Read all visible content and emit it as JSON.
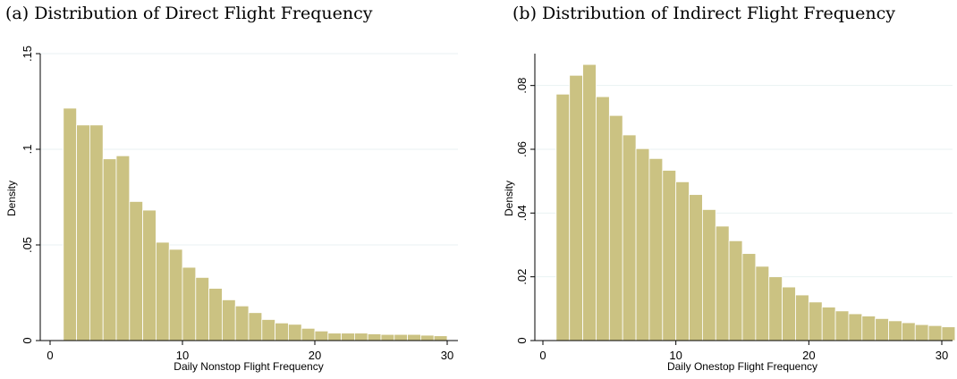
{
  "panels": [
    {
      "title": "(a) Distribution of Direct Flight Frequency"
    },
    {
      "title": "(b) Distribution of Indirect Flight Frequency"
    }
  ],
  "chart_data": [
    {
      "type": "bar",
      "xlabel": "Daily Nonstop Flight Frequency",
      "ylabel": "Density",
      "xlim": [
        0,
        30
      ],
      "ylim": [
        0,
        0.15
      ],
      "xticks": [
        0,
        10,
        20,
        30
      ],
      "xtick_labels": [
        "0",
        "10",
        "20",
        "30"
      ],
      "yticks": [
        0,
        0.05,
        0.1,
        0.15
      ],
      "ytick_labels": [
        "0",
        ".05",
        ".1",
        ".15"
      ],
      "grid": true,
      "bar_color": "#cbc282",
      "bin_start": 1,
      "bin_width": 1,
      "values": [
        0.1215,
        0.1127,
        0.1127,
        0.095,
        0.0966,
        0.0727,
        0.0682,
        0.0514,
        0.0477,
        0.0383,
        0.033,
        0.0273,
        0.0213,
        0.0181,
        0.0146,
        0.011,
        0.0092,
        0.0085,
        0.0064,
        0.005,
        0.0039,
        0.0039,
        0.0039,
        0.0035,
        0.0032,
        0.0032,
        0.0032,
        0.0028,
        0.0025
      ]
    },
    {
      "type": "bar",
      "xlabel": "Daily Onestop Flight Frequency",
      "ylabel": "Density",
      "xlim": [
        0,
        30
      ],
      "ylim": [
        0,
        0.09
      ],
      "xticks": [
        0,
        10,
        20,
        30
      ],
      "xtick_labels": [
        "0",
        "10",
        "20",
        "30"
      ],
      "yticks": [
        0,
        0.02,
        0.04,
        0.06,
        0.08
      ],
      "ytick_labels": [
        "0",
        ".02",
        ".04",
        ".06",
        ".08"
      ],
      "grid": true,
      "bar_color": "#cbc282",
      "bin_start": 1,
      "bin_width": 1,
      "values": [
        0.0773,
        0.0832,
        0.0866,
        0.0765,
        0.0706,
        0.0645,
        0.0602,
        0.0571,
        0.0534,
        0.0498,
        0.0458,
        0.0411,
        0.0359,
        0.0313,
        0.0273,
        0.0233,
        0.02,
        0.0168,
        0.0143,
        0.0121,
        0.0105,
        0.0093,
        0.0084,
        0.0077,
        0.0069,
        0.0062,
        0.0056,
        0.005,
        0.0047,
        0.0043
      ]
    }
  ]
}
